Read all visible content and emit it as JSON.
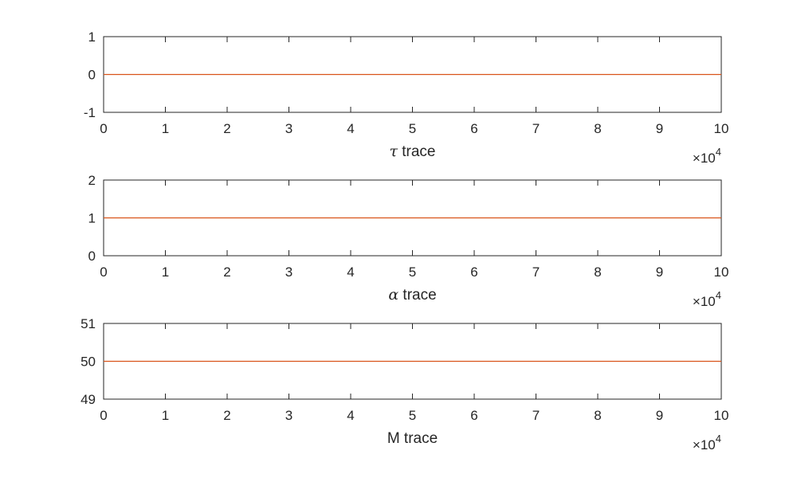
{
  "colors": {
    "line": "#d95319",
    "axis": "#262626",
    "background": "#ffffff"
  },
  "chart_data": [
    {
      "type": "line",
      "xlabel_symbol": "τ",
      "xlabel_text": " trace",
      "x_exponent_base": "×10",
      "x_exponent_power": "4",
      "xlim": [
        0,
        100000
      ],
      "ylim": [
        -1,
        1
      ],
      "x_ticks": [
        0,
        10000,
        20000,
        30000,
        40000,
        50000,
        60000,
        70000,
        80000,
        90000,
        100000
      ],
      "x_tick_labels": [
        "0",
        "1",
        "2",
        "3",
        "4",
        "5",
        "6",
        "7",
        "8",
        "9",
        "10"
      ],
      "y_ticks": [
        -1,
        0,
        1
      ],
      "y_tick_labels": [
        "-1",
        "0",
        "1"
      ],
      "series": [
        {
          "x": [
            0,
            100000
          ],
          "y": [
            0,
            0
          ]
        }
      ]
    },
    {
      "type": "line",
      "xlabel_symbol": "α",
      "xlabel_text": " trace",
      "x_exponent_base": "×10",
      "x_exponent_power": "4",
      "xlim": [
        0,
        100000
      ],
      "ylim": [
        0,
        2
      ],
      "x_ticks": [
        0,
        10000,
        20000,
        30000,
        40000,
        50000,
        60000,
        70000,
        80000,
        90000,
        100000
      ],
      "x_tick_labels": [
        "0",
        "1",
        "2",
        "3",
        "4",
        "5",
        "6",
        "7",
        "8",
        "9",
        "10"
      ],
      "y_ticks": [
        0,
        1,
        2
      ],
      "y_tick_labels": [
        "0",
        "1",
        "2"
      ],
      "series": [
        {
          "x": [
            0,
            100000
          ],
          "y": [
            1,
            1
          ]
        }
      ]
    },
    {
      "type": "line",
      "xlabel_symbol": "",
      "xlabel_text": "M trace",
      "x_exponent_base": "×10",
      "x_exponent_power": "4",
      "xlim": [
        0,
        100000
      ],
      "ylim": [
        49,
        51
      ],
      "x_ticks": [
        0,
        10000,
        20000,
        30000,
        40000,
        50000,
        60000,
        70000,
        80000,
        90000,
        100000
      ],
      "x_tick_labels": [
        "0",
        "1",
        "2",
        "3",
        "4",
        "5",
        "6",
        "7",
        "8",
        "9",
        "10"
      ],
      "y_ticks": [
        49,
        50,
        51
      ],
      "y_tick_labels": [
        "49",
        "50",
        "51"
      ],
      "series": [
        {
          "x": [
            0,
            100000
          ],
          "y": [
            50,
            50
          ]
        }
      ]
    }
  ]
}
